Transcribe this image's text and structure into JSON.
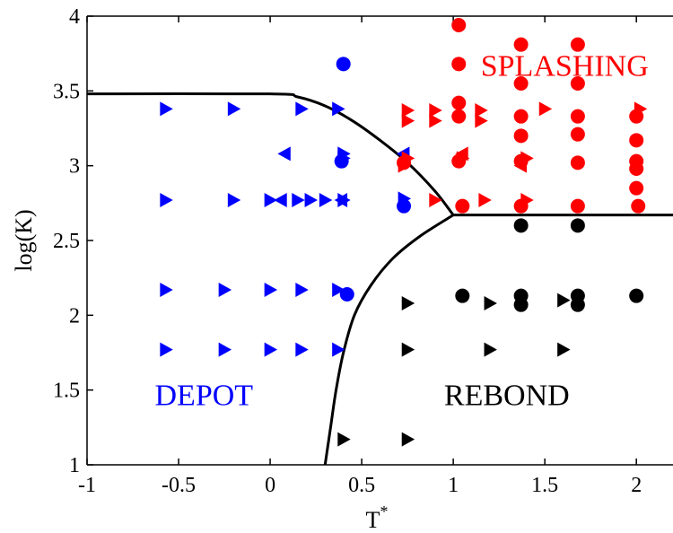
{
  "chart_data": {
    "type": "scatter",
    "title": "",
    "xlabel": "T",
    "xlabel_superscript": "*",
    "ylabel": "log(K)",
    "xlim": [
      -1,
      2.2
    ],
    "ylim": [
      1,
      4
    ],
    "xticks": [
      "-1",
      "-0.5",
      "0",
      "0.5",
      "1",
      "1.5",
      "2"
    ],
    "xtick_values": [
      -1,
      -0.5,
      0,
      0.5,
      1,
      1.5,
      2
    ],
    "yticks": [
      "1",
      "1.5",
      "2",
      "2.5",
      "3",
      "3.5",
      "4"
    ],
    "ytick_values": [
      1,
      1.5,
      2,
      2.5,
      3,
      3.5,
      4
    ],
    "grid": false,
    "colors": {
      "depot": "#0000ff",
      "splashing": "#ff0000",
      "rebond": "#000000",
      "boundary": "#000000"
    },
    "region_labels": [
      {
        "text": "DEPOT",
        "x": -0.63,
        "y": 1.4,
        "color": "#0000ff"
      },
      {
        "text": "SPLASHING",
        "x": 1.15,
        "y": 3.6,
        "color": "#ff0000"
      },
      {
        "text": "REBOND",
        "x": 0.95,
        "y": 1.4,
        "color": "#000000"
      }
    ],
    "boundaries": [
      {
        "name": "",
        "x": [
          -1,
          0,
          0.15,
          0.3,
          0.45,
          0.6,
          0.75,
          0.9,
          1.0
        ],
        "y": [
          3.48,
          3.48,
          3.46,
          3.4,
          3.3,
          3.17,
          3.02,
          2.83,
          2.67
        ]
      },
      {
        "name": "",
        "x": [
          1.0,
          2.2
        ],
        "y": [
          2.67,
          2.67
        ]
      },
      {
        "name": "",
        "x": [
          0.3,
          0.33,
          0.36,
          0.4,
          0.46,
          0.55,
          0.67,
          0.82,
          1.0
        ],
        "y": [
          1.0,
          1.25,
          1.5,
          1.75,
          2.0,
          2.2,
          2.38,
          2.53,
          2.67
        ]
      }
    ],
    "series": [
      {
        "color": "#0000ff",
        "marker": "triangle-right",
        "points": [
          [
            -0.57,
            3.38
          ],
          [
            -0.2,
            3.38
          ],
          [
            0.17,
            3.38
          ],
          [
            0.37,
            3.38
          ],
          [
            -0.57,
            2.77
          ],
          [
            -0.2,
            2.77
          ],
          [
            0,
            2.77
          ],
          [
            0.15,
            2.77
          ],
          [
            0.22,
            2.77
          ],
          [
            0.3,
            2.77
          ],
          [
            0.4,
            2.77
          ],
          [
            -0.57,
            2.17
          ],
          [
            -0.25,
            2.17
          ],
          [
            0,
            2.17
          ],
          [
            0.17,
            2.17
          ],
          [
            0.37,
            2.17
          ],
          [
            -0.57,
            1.77
          ],
          [
            -0.25,
            1.77
          ],
          [
            0,
            1.77
          ],
          [
            0.17,
            1.77
          ],
          [
            0.37,
            1.77
          ],
          [
            0.4,
            3.08
          ],
          [
            0.4,
            3.05
          ],
          [
            0.73,
            2.78
          ]
        ]
      },
      {
        "color": "#0000ff",
        "marker": "triangle-left",
        "points": [
          [
            0.08,
            3.08
          ],
          [
            0.06,
            2.77
          ],
          [
            0.39,
            2.77
          ],
          [
            0.73,
            3.08
          ]
        ]
      },
      {
        "color": "#0000ff",
        "marker": "circle",
        "points": [
          [
            0.4,
            3.68
          ],
          [
            0.39,
            3.03
          ],
          [
            0.73,
            2.73
          ],
          [
            0.42,
            2.14
          ]
        ]
      },
      {
        "color": "#ff0000",
        "marker": "triangle-right",
        "points": [
          [
            0.75,
            3.37
          ],
          [
            0.75,
            3.3
          ],
          [
            0.9,
            3.37
          ],
          [
            0.9,
            3.3
          ],
          [
            1.15,
            3.37
          ],
          [
            1.15,
            3.3
          ],
          [
            1.5,
            3.38
          ],
          [
            2.02,
            3.38
          ],
          [
            0.75,
            3.05
          ],
          [
            1.05,
            3.05
          ],
          [
            1.4,
            3.05
          ],
          [
            0.9,
            2.77
          ],
          [
            1.17,
            2.77
          ],
          [
            1.4,
            2.77
          ],
          [
            0.73,
            3.0
          ]
        ]
      },
      {
        "color": "#ff0000",
        "marker": "triangle-left",
        "points": [
          [
            1.05,
            3.08
          ],
          [
            1.37,
            3.0
          ]
        ]
      },
      {
        "color": "#ff0000",
        "marker": "circle",
        "points": [
          [
            1.03,
            3.94
          ],
          [
            1.03,
            3.68
          ],
          [
            1.03,
            3.42
          ],
          [
            1.03,
            3.33
          ],
          [
            1.03,
            3.03
          ],
          [
            1.05,
            2.73
          ],
          [
            1.37,
            3.81
          ],
          [
            1.37,
            3.55
          ],
          [
            1.37,
            3.33
          ],
          [
            1.37,
            3.2
          ],
          [
            1.37,
            3.03
          ],
          [
            1.37,
            2.73
          ],
          [
            1.68,
            3.81
          ],
          [
            1.68,
            3.55
          ],
          [
            1.68,
            3.33
          ],
          [
            1.68,
            3.21
          ],
          [
            1.68,
            3.02
          ],
          [
            1.68,
            2.73
          ],
          [
            2.0,
            3.33
          ],
          [
            2.0,
            3.17
          ],
          [
            2.0,
            3.03
          ],
          [
            2.0,
            2.98
          ],
          [
            2.0,
            2.85
          ],
          [
            2.01,
            2.73
          ],
          [
            0.73,
            3.02
          ]
        ]
      },
      {
        "color": "#000000",
        "marker": "circle",
        "points": [
          [
            1.37,
            2.6
          ],
          [
            1.68,
            2.6
          ],
          [
            1.05,
            2.13
          ],
          [
            1.37,
            2.13
          ],
          [
            1.37,
            2.07
          ],
          [
            1.68,
            2.13
          ],
          [
            1.68,
            2.07
          ],
          [
            2.0,
            2.13
          ]
        ]
      },
      {
        "color": "#000000",
        "marker": "triangle-right",
        "points": [
          [
            0.75,
            2.08
          ],
          [
            1.2,
            2.08
          ],
          [
            1.6,
            2.1
          ],
          [
            0.75,
            1.77
          ],
          [
            1.2,
            1.77
          ],
          [
            1.6,
            1.77
          ],
          [
            0.4,
            1.17
          ],
          [
            0.75,
            1.17
          ]
        ]
      }
    ]
  }
}
